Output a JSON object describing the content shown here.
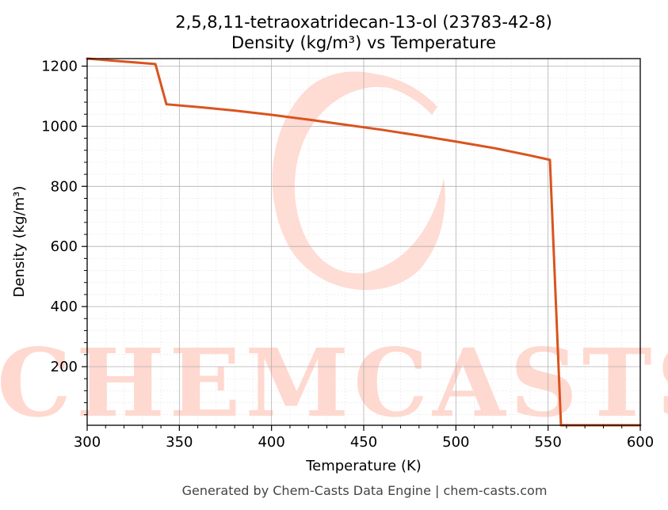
{
  "chart_data": {
    "type": "line",
    "title": "2,5,8,11-tetraoxatridecan-13-ol (23783-42-8)",
    "subtitle": "Density (kg/m³) vs Temperature",
    "xlabel": "Temperature (K)",
    "ylabel": "Density (kg/m³)",
    "xlim": [
      300,
      600
    ],
    "ylim": [
      5,
      1225
    ],
    "xticks": [
      300,
      350,
      400,
      450,
      500,
      550,
      600
    ],
    "yticks": [
      200,
      400,
      600,
      800,
      1000,
      1200
    ],
    "grid": true,
    "series": [
      {
        "color": "#d9541e",
        "x": [
          300,
          337,
          343,
          360,
          380,
          400,
          420,
          440,
          460,
          480,
          500,
          520,
          540,
          551,
          557,
          600
        ],
        "y": [
          1225,
          1207,
          1073,
          1064,
          1052,
          1038,
          1022,
          1005,
          988,
          969,
          949,
          928,
          903,
          888,
          5,
          5
        ]
      }
    ]
  },
  "watermark": {
    "text": "CHEMCASTS",
    "color": "#ffd8cf"
  },
  "footer": "Generated by Chem-Casts Data Engine | chem-casts.com"
}
